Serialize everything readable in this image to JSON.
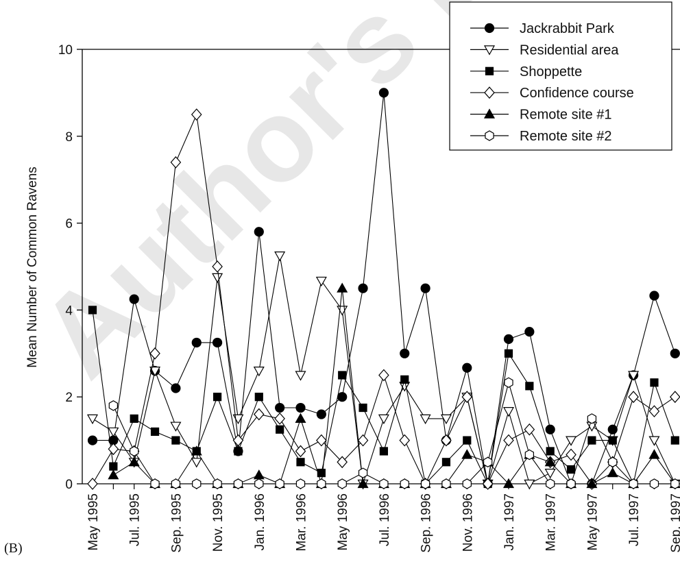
{
  "panel_label": "(B)",
  "watermark": "Author's personal copy",
  "chart_data": {
    "type": "line",
    "title": "",
    "xlabel": "",
    "ylabel": "Mean Number of Common Ravens",
    "ylim": [
      0,
      10
    ],
    "yticks": [
      0,
      2,
      4,
      6,
      8,
      10
    ],
    "grid": false,
    "legend_position": "top-right",
    "x_labels": [
      "May 1995",
      "Jul. 1995",
      "Sep. 1995",
      "Nov. 1995",
      "Jan. 1996",
      "Mar. 1996",
      "May 1996",
      "Jul. 1996",
      "Sep. 1996",
      "Nov. 1996",
      "Jan. 1997",
      "Mar. 1997",
      "May 1997",
      "Jul. 1997",
      "Sep. 1997"
    ],
    "x": [
      "May 1995",
      "Jun. 1995",
      "Jul. 1995",
      "Aug. 1995",
      "Sep. 1995",
      "Oct. 1995",
      "Nov. 1995",
      "Dec. 1995",
      "Jan. 1996",
      "Feb. 1996",
      "Mar. 1996",
      "Apr. 1996",
      "May 1996",
      "Jun. 1996",
      "Jul. 1996",
      "Aug. 1996",
      "Sep. 1996",
      "Oct. 1996",
      "Nov. 1996",
      "Dec. 1996",
      "Jan. 1997",
      "Feb. 1997",
      "Mar. 1997",
      "Apr. 1997",
      "May 1997",
      "Jun. 1997",
      "Jul. 1997",
      "Aug. 1997",
      "Sep. 1997"
    ],
    "series": [
      {
        "name": "Jackrabbit Park",
        "marker": "circle",
        "fill": "#000000",
        "values": [
          1.0,
          1.0,
          4.25,
          2.6,
          2.2,
          3.25,
          3.25,
          0.75,
          5.8,
          1.75,
          1.75,
          1.6,
          2.0,
          4.5,
          9.0,
          3.0,
          4.5,
          1.0,
          2.67,
          0.0,
          3.33,
          3.5,
          1.25,
          0.0,
          0.0,
          1.25,
          2.5,
          4.33,
          3.0
        ]
      },
      {
        "name": "Residential area",
        "marker": "triangle-down",
        "fill": "#ffffff",
        "values": [
          1.5,
          1.2,
          0.5,
          2.6,
          1.33,
          0.5,
          4.75,
          1.5,
          2.6,
          5.25,
          2.5,
          4.67,
          4.0,
          0.0,
          1.5,
          2.25,
          1.5,
          1.5,
          2.0,
          0.0,
          1.67,
          0.0,
          0.25,
          1.0,
          1.33,
          1.0,
          2.5,
          1.0,
          0.0
        ]
      },
      {
        "name": "Shoppette",
        "marker": "square",
        "fill": "#000000",
        "values": [
          4.0,
          0.4,
          1.5,
          1.2,
          1.0,
          0.75,
          2.0,
          0.75,
          2.0,
          1.25,
          0.5,
          0.25,
          2.5,
          1.75,
          0.75,
          2.4,
          0.0,
          0.5,
          1.0,
          0.0,
          3.0,
          2.25,
          0.75,
          0.33,
          1.0,
          1.0,
          0.0,
          2.33,
          1.0
        ]
      },
      {
        "name": "Confidence course",
        "marker": "diamond",
        "fill": "#ffffff",
        "values": [
          0.0,
          0.8,
          0.75,
          3.0,
          7.4,
          8.5,
          5.0,
          1.0,
          1.6,
          1.5,
          0.75,
          1.0,
          0.5,
          1.0,
          2.5,
          1.0,
          0.0,
          1.0,
          2.0,
          0.0,
          1.0,
          1.25,
          0.5,
          0.67,
          0.0,
          0.5,
          2.0,
          1.67,
          2.0
        ]
      },
      {
        "name": "Remote site #1",
        "marker": "triangle-up",
        "fill": "#000000",
        "values": [
          null,
          0.2,
          0.5,
          0.0,
          0.0,
          0.75,
          0.0,
          0.0,
          0.2,
          0.0,
          1.5,
          0.0,
          4.5,
          0.0,
          0.0,
          0.0,
          0.0,
          0.0,
          0.67,
          0.5,
          0.0,
          0.67,
          0.5,
          0.0,
          0.0,
          0.25,
          0.0,
          0.67,
          0.0
        ]
      },
      {
        "name": "Remote site #2",
        "marker": "hexagon",
        "fill": "#ffffff",
        "values": [
          null,
          1.8,
          0.75,
          0.0,
          0.0,
          0.0,
          0.0,
          0.0,
          0.0,
          0.0,
          0.0,
          0.0,
          0.0,
          0.25,
          0.0,
          0.0,
          0.0,
          0.0,
          0.0,
          0.5,
          2.33,
          0.67,
          0.0,
          0.0,
          1.5,
          0.5,
          0.0,
          0.0,
          0.0
        ]
      }
    ]
  }
}
